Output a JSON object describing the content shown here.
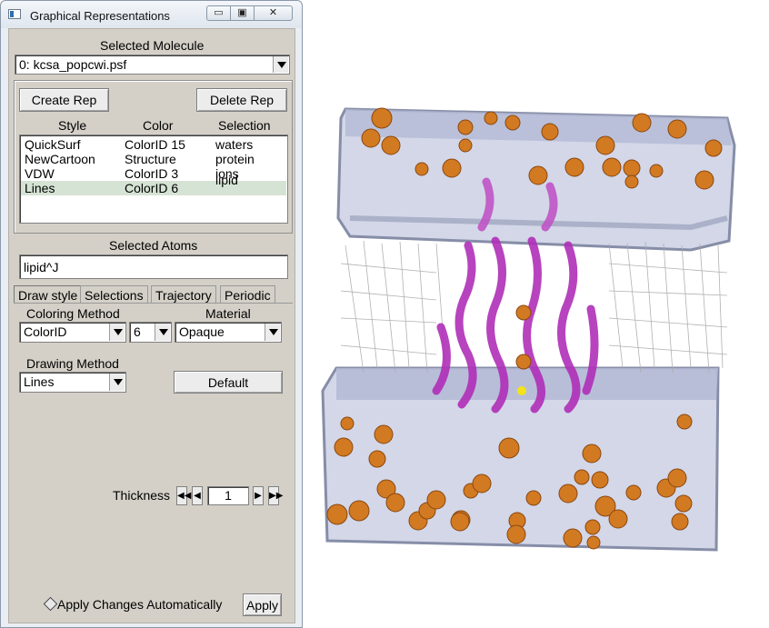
{
  "window": {
    "title": "Graphical Representations",
    "minimize_glyph": "▭",
    "maximize_glyph": "▣",
    "close_glyph": "✕"
  },
  "molecule": {
    "label": "Selected Molecule",
    "value": "0: kcsa_popcwi.psf"
  },
  "reps": {
    "create_label": "Create Rep",
    "delete_label": "Delete Rep",
    "headers": [
      "Style",
      "Color",
      "Selection"
    ],
    "rows": [
      {
        "style": "QuickSurf",
        "color": "ColorID 15",
        "selection": "waters"
      },
      {
        "style": "NewCartoon",
        "color": "Structure",
        "selection": "protein"
      },
      {
        "style": "VDW",
        "color": "ColorID 3",
        "selection": "ions"
      },
      {
        "style": "Lines",
        "color": "ColorID 6",
        "selection": "lipid"
      }
    ],
    "selected_index": 3
  },
  "atoms": {
    "label": "Selected Atoms",
    "value": "lipid^J"
  },
  "tabs": [
    "Draw style",
    "Selections",
    "Trajectory",
    "Periodic"
  ],
  "draw": {
    "coloring_label": "Coloring Method",
    "coloring_value": "ColorID",
    "color_id_value": "6",
    "material_label": "Material",
    "material_value": "Opaque",
    "drawing_label": "Drawing Method",
    "drawing_value": "Lines",
    "default_label": "Default",
    "thickness_label": "Thickness",
    "thickness_value": "1"
  },
  "footer": {
    "apply_auto_label": "Apply Changes Automatically",
    "apply_label": "Apply"
  },
  "colors": {
    "water_box": "#c8cde3",
    "water_edge": "#6e7694",
    "ion": "#d97a1c",
    "protein": "#b02fb8",
    "lipid": "#9a9a9a"
  },
  "viewer": {
    "description_icon": "molecule-render-icon"
  }
}
